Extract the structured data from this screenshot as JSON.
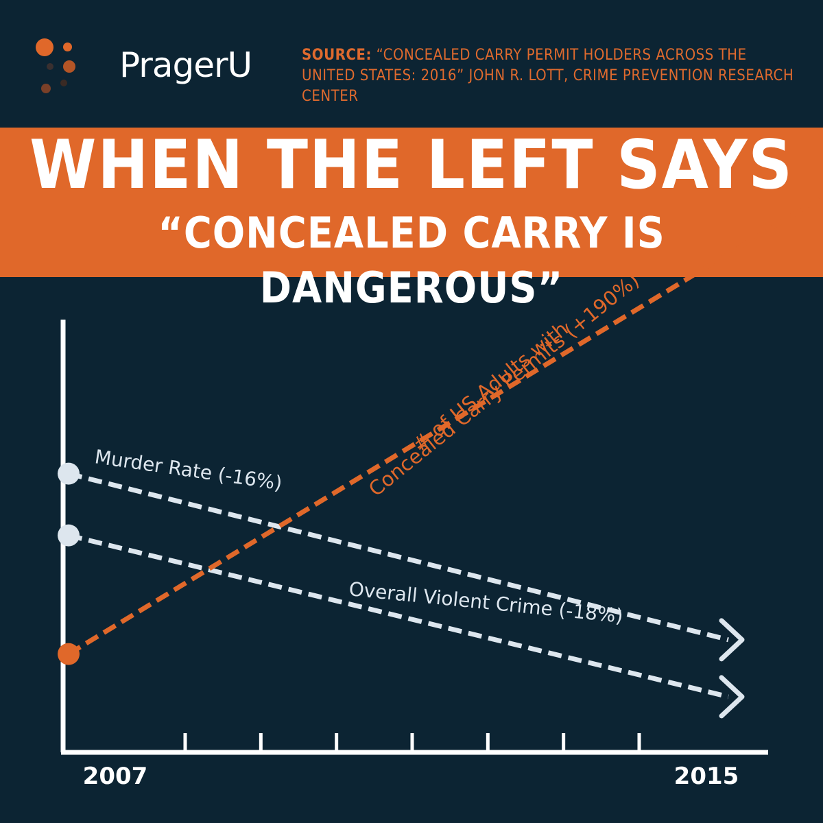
{
  "brand": {
    "name": "PragerU",
    "colors": {
      "background": "#0c2433",
      "orange": "#e0682a",
      "light": "#dde6ee",
      "white": "#ffffff"
    }
  },
  "source": {
    "label": "SOURCE:",
    "text": "“CONCEALED CARRY PERMIT HOLDERS ACROSS THE UNITED STATES: 2016” JOHN R. LOTT, CRIME PREVENTION RESEARCH CENTER"
  },
  "headline": {
    "line1": "WHEN THE LEFT SAYS",
    "line2": "“CONCEALED CARRY IS DANGEROUS”"
  },
  "chart_data": {
    "type": "line",
    "title": "",
    "x": [
      2007,
      2015
    ],
    "x_ticks": [
      2007,
      2008,
      2009,
      2010,
      2011,
      2012,
      2013,
      2014,
      2015
    ],
    "x_tick_labels": [
      "2007",
      "2015"
    ],
    "xlabel": "",
    "ylabel": "",
    "y_unit": "relative level (illustrative, no y-axis scale shown)",
    "ylim": [
      0,
      100
    ],
    "series": [
      {
        "name": "Murder Rate",
        "label": "Murder Rate (-16%)",
        "change_pct": -16,
        "values": [
          58,
          23
        ],
        "color": "#dde6ee",
        "style": "dashed-arrow"
      },
      {
        "name": "Overall Violent Crime",
        "label": "Overall Violent Crime (-18%)",
        "change_pct": -18,
        "values": [
          45,
          11
        ],
        "color": "#dde6ee",
        "style": "dashed-arrow"
      },
      {
        "name": "US Adults with Concealed Carry Permits",
        "label_line1": "# of US Adults with",
        "label_line2": "Concealed Carry Permits (+190%)",
        "change_pct": 190,
        "values": [
          20,
          105
        ],
        "color": "#e0682a",
        "style": "dashed"
      }
    ]
  }
}
